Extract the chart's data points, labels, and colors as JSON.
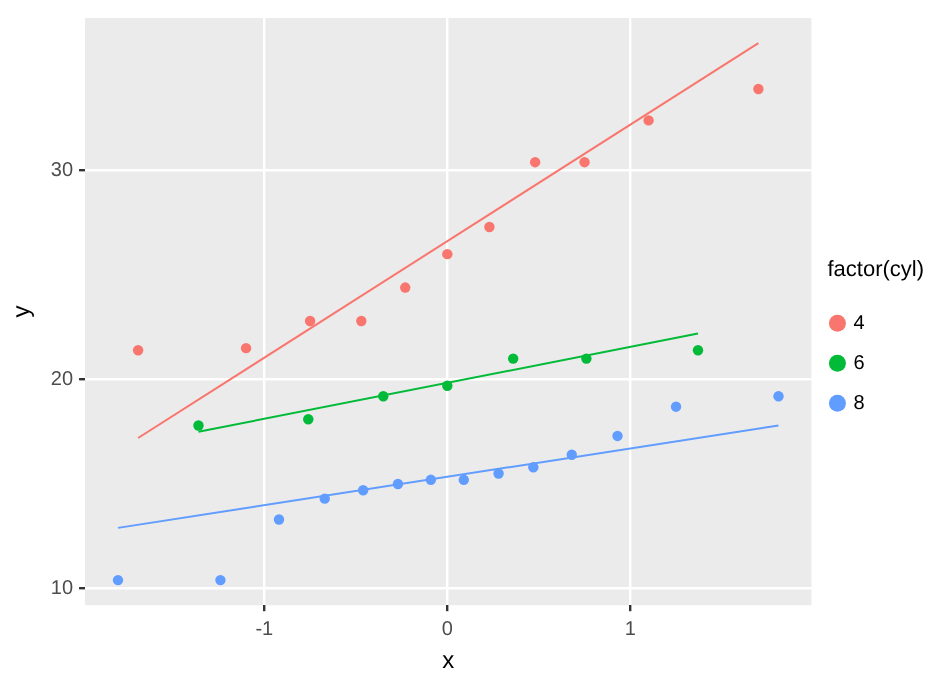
{
  "chart_data": {
    "type": "scatter",
    "xlabel": "x",
    "ylabel": "y",
    "legend_title": "factor(cyl)",
    "legend": "right",
    "grid": true,
    "marker": "circle",
    "xlim": [
      -1.98,
      1.99
    ],
    "ylim": [
      9.2,
      37.3
    ],
    "xticks": [
      -1,
      0,
      1
    ],
    "yticks": [
      10,
      20,
      30
    ],
    "series": [
      {
        "name": "4",
        "color": "#f8766d",
        "x": [
          -1.69,
          -1.1,
          -0.75,
          -0.47,
          -0.23,
          0.0,
          0.23,
          0.48,
          0.75,
          1.1,
          1.7
        ],
        "values": [
          21.4,
          21.5,
          22.8,
          22.8,
          24.4,
          26.0,
          27.3,
          30.4,
          30.4,
          32.4,
          33.9
        ]
      },
      {
        "name": "6",
        "color": "#00ba38",
        "x": [
          -1.36,
          -0.76,
          -0.35,
          0.0,
          0.36,
          0.76,
          1.37
        ],
        "values": [
          17.8,
          18.1,
          19.2,
          19.7,
          21.0,
          21.0,
          21.4
        ]
      },
      {
        "name": "8",
        "color": "#619cff",
        "x": [
          -1.8,
          -1.24,
          -0.92,
          -0.67,
          -0.46,
          -0.27,
          -0.09,
          0.09,
          0.28,
          0.47,
          0.68,
          0.93,
          1.25,
          1.81
        ],
        "values": [
          10.4,
          10.4,
          13.3,
          14.3,
          14.7,
          15.0,
          15.2,
          15.2,
          15.5,
          15.8,
          16.4,
          17.3,
          18.7,
          19.2
        ]
      },
      {
        "type": "line",
        "marker": "none",
        "color": "#f8766d",
        "x": [
          -1.69,
          1.7
        ],
        "values": [
          17.2,
          36.1
        ]
      },
      {
        "type": "line",
        "marker": "none",
        "color": "#00ba38",
        "x": [
          -1.36,
          1.37
        ],
        "values": [
          17.5,
          22.2
        ]
      },
      {
        "type": "line",
        "marker": "none",
        "color": "#619cff",
        "x": [
          -1.8,
          1.81
        ],
        "values": [
          12.9,
          17.8
        ]
      }
    ]
  }
}
